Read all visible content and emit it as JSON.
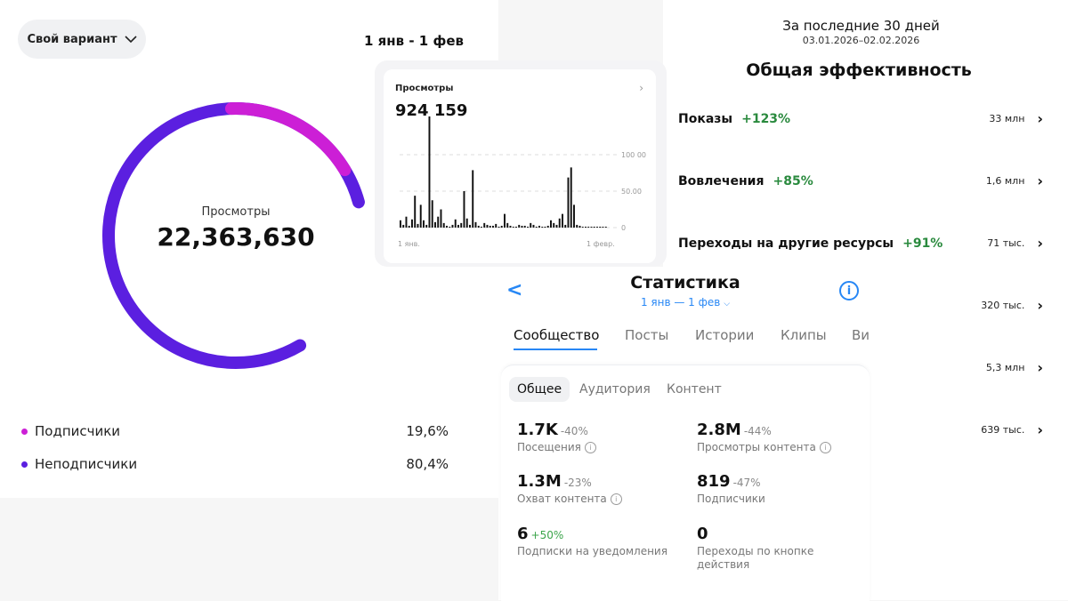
{
  "header": {
    "dropdown_label": "Свой вариант",
    "date_range": "1 янв - 1 фев"
  },
  "donut": {
    "center_label": "Просмотры",
    "center_value": "22,363,630",
    "colors": {
      "subscribers": "#cc1fd6",
      "non_subscribers": "#5b1fe0"
    }
  },
  "legend": [
    {
      "label": "Подписчики",
      "value": "19,6%",
      "color": "#cc1fd6"
    },
    {
      "label": "Неподписчики",
      "value": "80,4%",
      "color": "#5b1fe0"
    }
  ],
  "views_card": {
    "title": "Просмотры",
    "value": "924 159",
    "y_ticks": [
      "100 00",
      "50.00",
      "0"
    ],
    "x_labels": [
      "1 янв.",
      "1 февр."
    ]
  },
  "chart_data": {
    "type": "bar",
    "title": "",
    "xlabel": "",
    "ylabel": "",
    "x_tick_labels": [
      "1 янв.",
      "1 февр."
    ],
    "ylim": [
      0,
      120000
    ],
    "values": [
      8000,
      3000,
      12000,
      2000,
      9000,
      35000,
      4000,
      25000,
      8000,
      3000,
      122000,
      30000,
      6000,
      12000,
      20000,
      5000,
      2000,
      1000,
      3000,
      9000,
      3000,
      5000,
      40000,
      10000,
      3000,
      63000,
      6000,
      2000,
      1000,
      5000,
      3000,
      2000,
      2000,
      4000,
      1000,
      2000,
      15000,
      5000,
      2000,
      1000,
      1000,
      3000,
      2000,
      2000,
      1000,
      5000,
      3000,
      1000,
      2000,
      1000,
      1000,
      2000,
      8000,
      5000,
      3000,
      10000,
      15000,
      3000,
      55000,
      66000,
      25000,
      3000,
      2000,
      1000,
      1000,
      1000,
      1000,
      1000,
      1000,
      1000,
      1000,
      1000
    ],
    "grid": true
  },
  "period": {
    "title": "За последние 30 дней",
    "dates": "03.01.2026–02.02.2026"
  },
  "efficiency": {
    "title": "Общая эффективность",
    "rows": [
      {
        "name": "Показы",
        "delta": "+123%",
        "value": "33 млн"
      },
      {
        "name": "Вовлечения",
        "delta": "+85%",
        "value": "1,6 млн"
      },
      {
        "name": "Переходы на другие ресурсы",
        "delta": "+91%",
        "value": "71 тыс."
      }
    ],
    "extra_values": [
      "320 тыс.",
      "5,3 млн",
      "639 тыс."
    ]
  },
  "stats": {
    "title": "Статистика",
    "range": "1 янв — 1 фев",
    "tabs": [
      "Сообщество",
      "Посты",
      "Истории",
      "Клипы",
      "Ви"
    ],
    "subtabs": [
      "Общее",
      "Аудитория",
      "Контент"
    ],
    "metrics": [
      {
        "value": "1.7K",
        "change": "-40%",
        "label": "Посещения",
        "info": true,
        "positive": false
      },
      {
        "value": "2.8M",
        "change": "-44%",
        "label": "Просмотры контента",
        "info": true,
        "positive": false
      },
      {
        "value": "1.3M",
        "change": "-23%",
        "label": "Охват контента",
        "info": true,
        "positive": false
      },
      {
        "value": "819",
        "change": "-47%",
        "label": "Подписчики",
        "info": false,
        "positive": false
      },
      {
        "value": "6",
        "change": "+50%",
        "label": "Подписки на уведомления",
        "info": false,
        "positive": true
      },
      {
        "value": "0",
        "change": "",
        "label": "Переходы по кнопке действия",
        "info": false,
        "positive": false
      }
    ]
  }
}
